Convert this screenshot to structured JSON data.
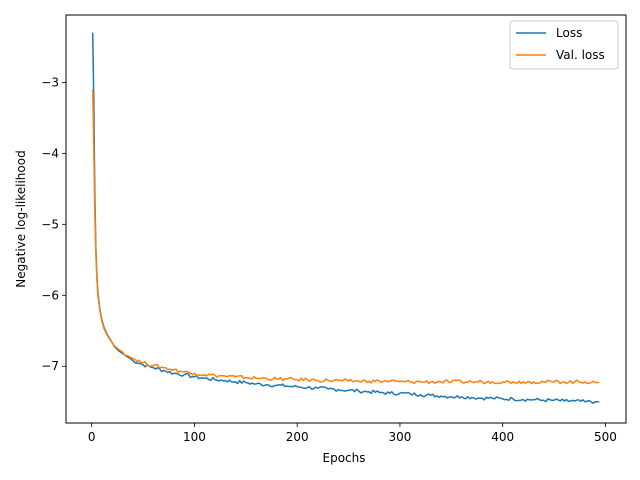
{
  "chart_data": {
    "type": "line",
    "title": "",
    "xlabel": "Epochs",
    "ylabel": "Negative log-likelihood",
    "xlim": [
      -25,
      520
    ],
    "ylim": [
      -7.8,
      -2.05
    ],
    "xticks": [
      0,
      100,
      200,
      300,
      400,
      500
    ],
    "yticks": [
      -7,
      -6,
      -5,
      -4,
      -3
    ],
    "xtick_labels": [
      "0",
      "100",
      "200",
      "300",
      "400",
      "500"
    ],
    "ytick_labels": [
      "−7",
      "−6",
      "−5",
      "−4",
      "−3"
    ],
    "grid": false,
    "legend_position": "top-right",
    "series": [
      {
        "name": "Loss",
        "color": "#1f77b4",
        "x": [
          1,
          2,
          3,
          4,
          5,
          6,
          8,
          10,
          12,
          15,
          18,
          22,
          26,
          30,
          35,
          40,
          50,
          60,
          70,
          80,
          90,
          100,
          110,
          120,
          130,
          140,
          150,
          160,
          170,
          180,
          190,
          200,
          210,
          220,
          230,
          240,
          250,
          260,
          270,
          280,
          290,
          300,
          310,
          320,
          330,
          340,
          350,
          360,
          370,
          380,
          390,
          400,
          410,
          420,
          430,
          440,
          450,
          460,
          470,
          480,
          490,
          494
        ],
        "y": [
          -2.3,
          -3.2,
          -4.5,
          -5.3,
          -5.7,
          -5.95,
          -6.2,
          -6.35,
          -6.45,
          -6.55,
          -6.62,
          -6.72,
          -6.78,
          -6.82,
          -6.87,
          -6.92,
          -6.98,
          -7.02,
          -7.06,
          -7.1,
          -7.12,
          -7.15,
          -7.17,
          -7.19,
          -7.2,
          -7.22,
          -7.23,
          -7.25,
          -7.26,
          -7.27,
          -7.28,
          -7.29,
          -7.3,
          -7.31,
          -7.32,
          -7.33,
          -7.34,
          -7.35,
          -7.36,
          -7.37,
          -7.38,
          -7.38,
          -7.39,
          -7.4,
          -7.41,
          -7.42,
          -7.43,
          -7.43,
          -7.44,
          -7.45,
          -7.45,
          -7.46,
          -7.46,
          -7.47,
          -7.47,
          -7.48,
          -7.48,
          -7.49,
          -7.49,
          -7.5,
          -7.5,
          -7.5
        ]
      },
      {
        "name": "Val. loss",
        "color": "#ff7f0e",
        "x": [
          1,
          2,
          3,
          4,
          5,
          6,
          8,
          10,
          12,
          15,
          18,
          22,
          26,
          30,
          35,
          40,
          50,
          60,
          70,
          80,
          90,
          100,
          110,
          120,
          130,
          140,
          150,
          160,
          170,
          180,
          190,
          200,
          210,
          220,
          230,
          240,
          250,
          260,
          270,
          280,
          290,
          300,
          310,
          320,
          330,
          340,
          350,
          360,
          370,
          380,
          390,
          400,
          410,
          420,
          430,
          440,
          450,
          460,
          470,
          480,
          490,
          494
        ],
        "y": [
          -3.1,
          -3.9,
          -4.8,
          -5.4,
          -5.75,
          -6.0,
          -6.22,
          -6.37,
          -6.47,
          -6.56,
          -6.63,
          -6.71,
          -6.76,
          -6.8,
          -6.85,
          -6.89,
          -6.95,
          -6.99,
          -7.02,
          -7.05,
          -7.08,
          -7.1,
          -7.12,
          -7.13,
          -7.14,
          -7.15,
          -7.16,
          -7.17,
          -7.17,
          -7.18,
          -7.18,
          -7.19,
          -7.19,
          -7.2,
          -7.2,
          -7.2,
          -7.21,
          -7.21,
          -7.21,
          -7.21,
          -7.21,
          -7.22,
          -7.22,
          -7.22,
          -7.22,
          -7.22,
          -7.22,
          -7.22,
          -7.22,
          -7.22,
          -7.22,
          -7.22,
          -7.22,
          -7.22,
          -7.22,
          -7.22,
          -7.22,
          -7.22,
          -7.22,
          -7.22,
          -7.23,
          -7.23
        ]
      }
    ]
  }
}
